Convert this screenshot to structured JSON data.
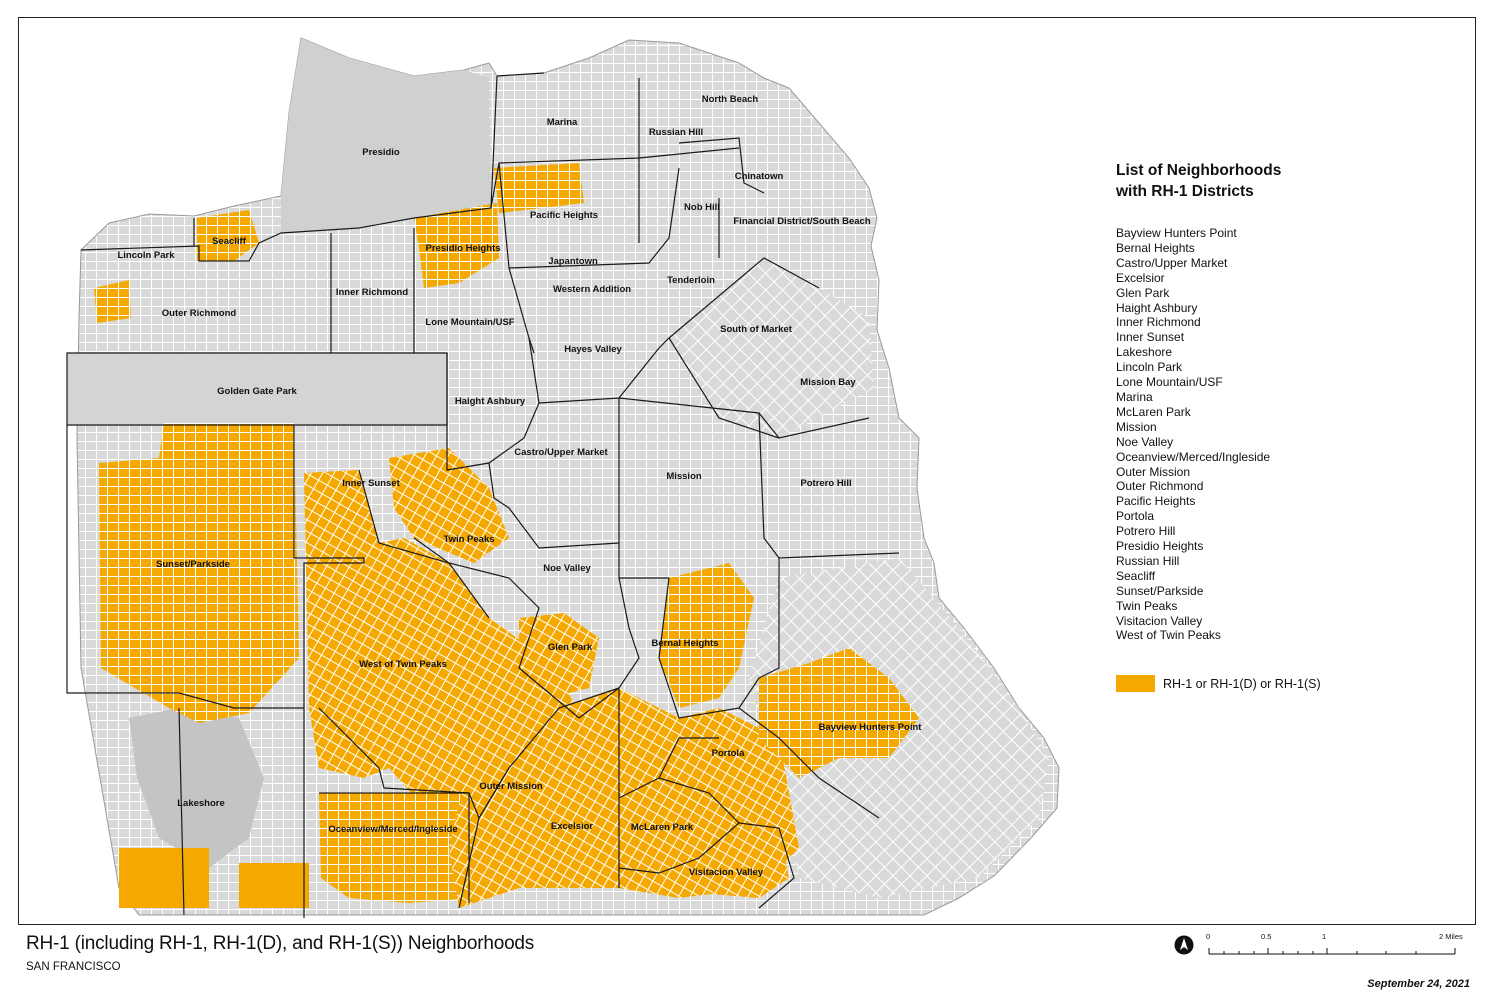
{
  "map": {
    "title": "RH-1 (including RH-1, RH-1(D), and RH-1(S)) Neighborhoods",
    "subtitle": "SAN FRANCISCO",
    "date": "September 24, 2021",
    "colors": {
      "zoning": "#f5a800",
      "land": "#d9d9d9",
      "streets": "#ffffff",
      "boundaries": "#1a1a1a",
      "water": "#ffffff"
    }
  },
  "neighborhood_labels": [
    "North Beach",
    "Marina",
    "Russian Hill",
    "Presidio",
    "Chinatown",
    "Nob Hill",
    "Pacific Heights",
    "Financial District/South Beach",
    "Seacliff",
    "Lincoln Park",
    "Presidio Heights",
    "Japantown",
    "Inner Richmond",
    "Western Addition",
    "Tenderloin",
    "Outer Richmond",
    "Lone Mountain/USF",
    "South of Market",
    "Hayes Valley",
    "Mission Bay",
    "Golden Gate Park",
    "Haight Ashbury",
    "Castro/Upper Market",
    "Mission",
    "Inner Sunset",
    "Potrero Hill",
    "Twin Peaks",
    "Sunset/Parkside",
    "Noe Valley",
    "Bernal Heights",
    "Glen Park",
    "West of Twin Peaks",
    "Bayview Hunters Point",
    "Portola",
    "Outer Mission",
    "Lakeshore",
    "Excelsior",
    "Oceanview/Merced/Ingleside",
    "McLaren Park",
    "Visitacion Valley"
  ],
  "legend": {
    "title": "List of Neighborhoods\nwith RH-1 Districts",
    "items": [
      "Bayview Hunters Point",
      "Bernal Heights",
      "Castro/Upper Market",
      "Excelsior",
      "Glen Park",
      "Haight Ashbury",
      "Inner Richmond",
      "Inner Sunset",
      "Lakeshore",
      "Lincoln Park",
      "Lone Mountain/USF",
      "Marina",
      "McLaren Park",
      "Mission",
      "Noe Valley",
      "Oceanview/Merced/Ingleside",
      "Outer Mission",
      "Outer Richmond",
      "Pacific Heights",
      "Portola",
      "Potrero Hill",
      "Presidio Heights",
      "Russian Hill",
      "Seacliff",
      "Sunset/Parkside",
      "Twin Peaks",
      "Visitacion Valley",
      "West of Twin Peaks"
    ],
    "key_label": "RH-1 or RH-1(D) or RH-1(S)"
  },
  "scale": {
    "labels": [
      "0",
      "0.5",
      "1",
      "2 Miles"
    ]
  },
  "north_arrow": {
    "icon": "north-arrow-icon"
  }
}
